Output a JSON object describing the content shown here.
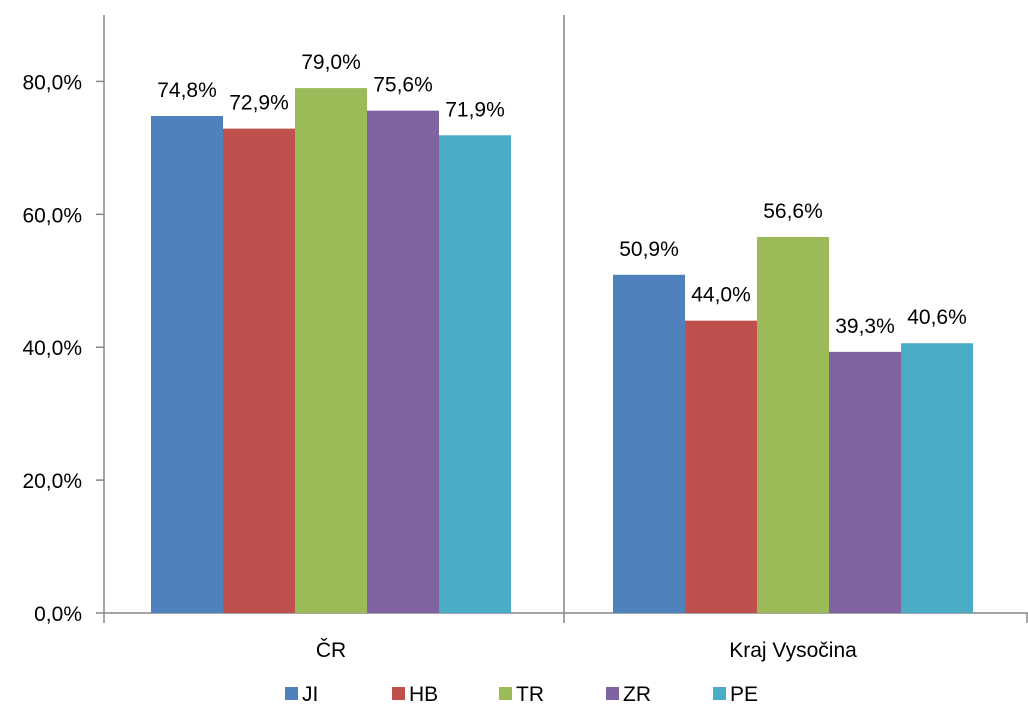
{
  "chart_data": {
    "type": "bar",
    "categories": [
      "ČR",
      "Kraj Vysočina"
    ],
    "series": [
      {
        "name": "JI",
        "values": [
          74.8,
          50.9
        ],
        "labels": [
          "74,8%",
          "50,9%"
        ],
        "color": "#4f81bd"
      },
      {
        "name": "HB",
        "values": [
          72.9,
          44.0
        ],
        "labels": [
          "72,9%",
          "44,0%"
        ],
        "color": "#c0504d"
      },
      {
        "name": "TR",
        "values": [
          79.0,
          56.6
        ],
        "labels": [
          "79,0%",
          "56,6%"
        ],
        "color": "#9bbb59"
      },
      {
        "name": "ZR",
        "values": [
          75.6,
          39.3
        ],
        "labels": [
          "75,6%",
          "39,3%"
        ],
        "color": "#8064a2"
      },
      {
        "name": "PE",
        "values": [
          71.9,
          40.6
        ],
        "labels": [
          "71,9%",
          "40,6%"
        ],
        "color": "#4bacc6"
      }
    ],
    "y_ticks": [
      0,
      20,
      40,
      60,
      80
    ],
    "y_tick_labels": [
      "0,0%",
      "20,0%",
      "40,0%",
      "60,0%",
      "80,0%"
    ],
    "ylim": [
      0,
      90
    ],
    "title": "",
    "xlabel": "",
    "ylabel": "",
    "grid": false,
    "legend": "bottom"
  }
}
